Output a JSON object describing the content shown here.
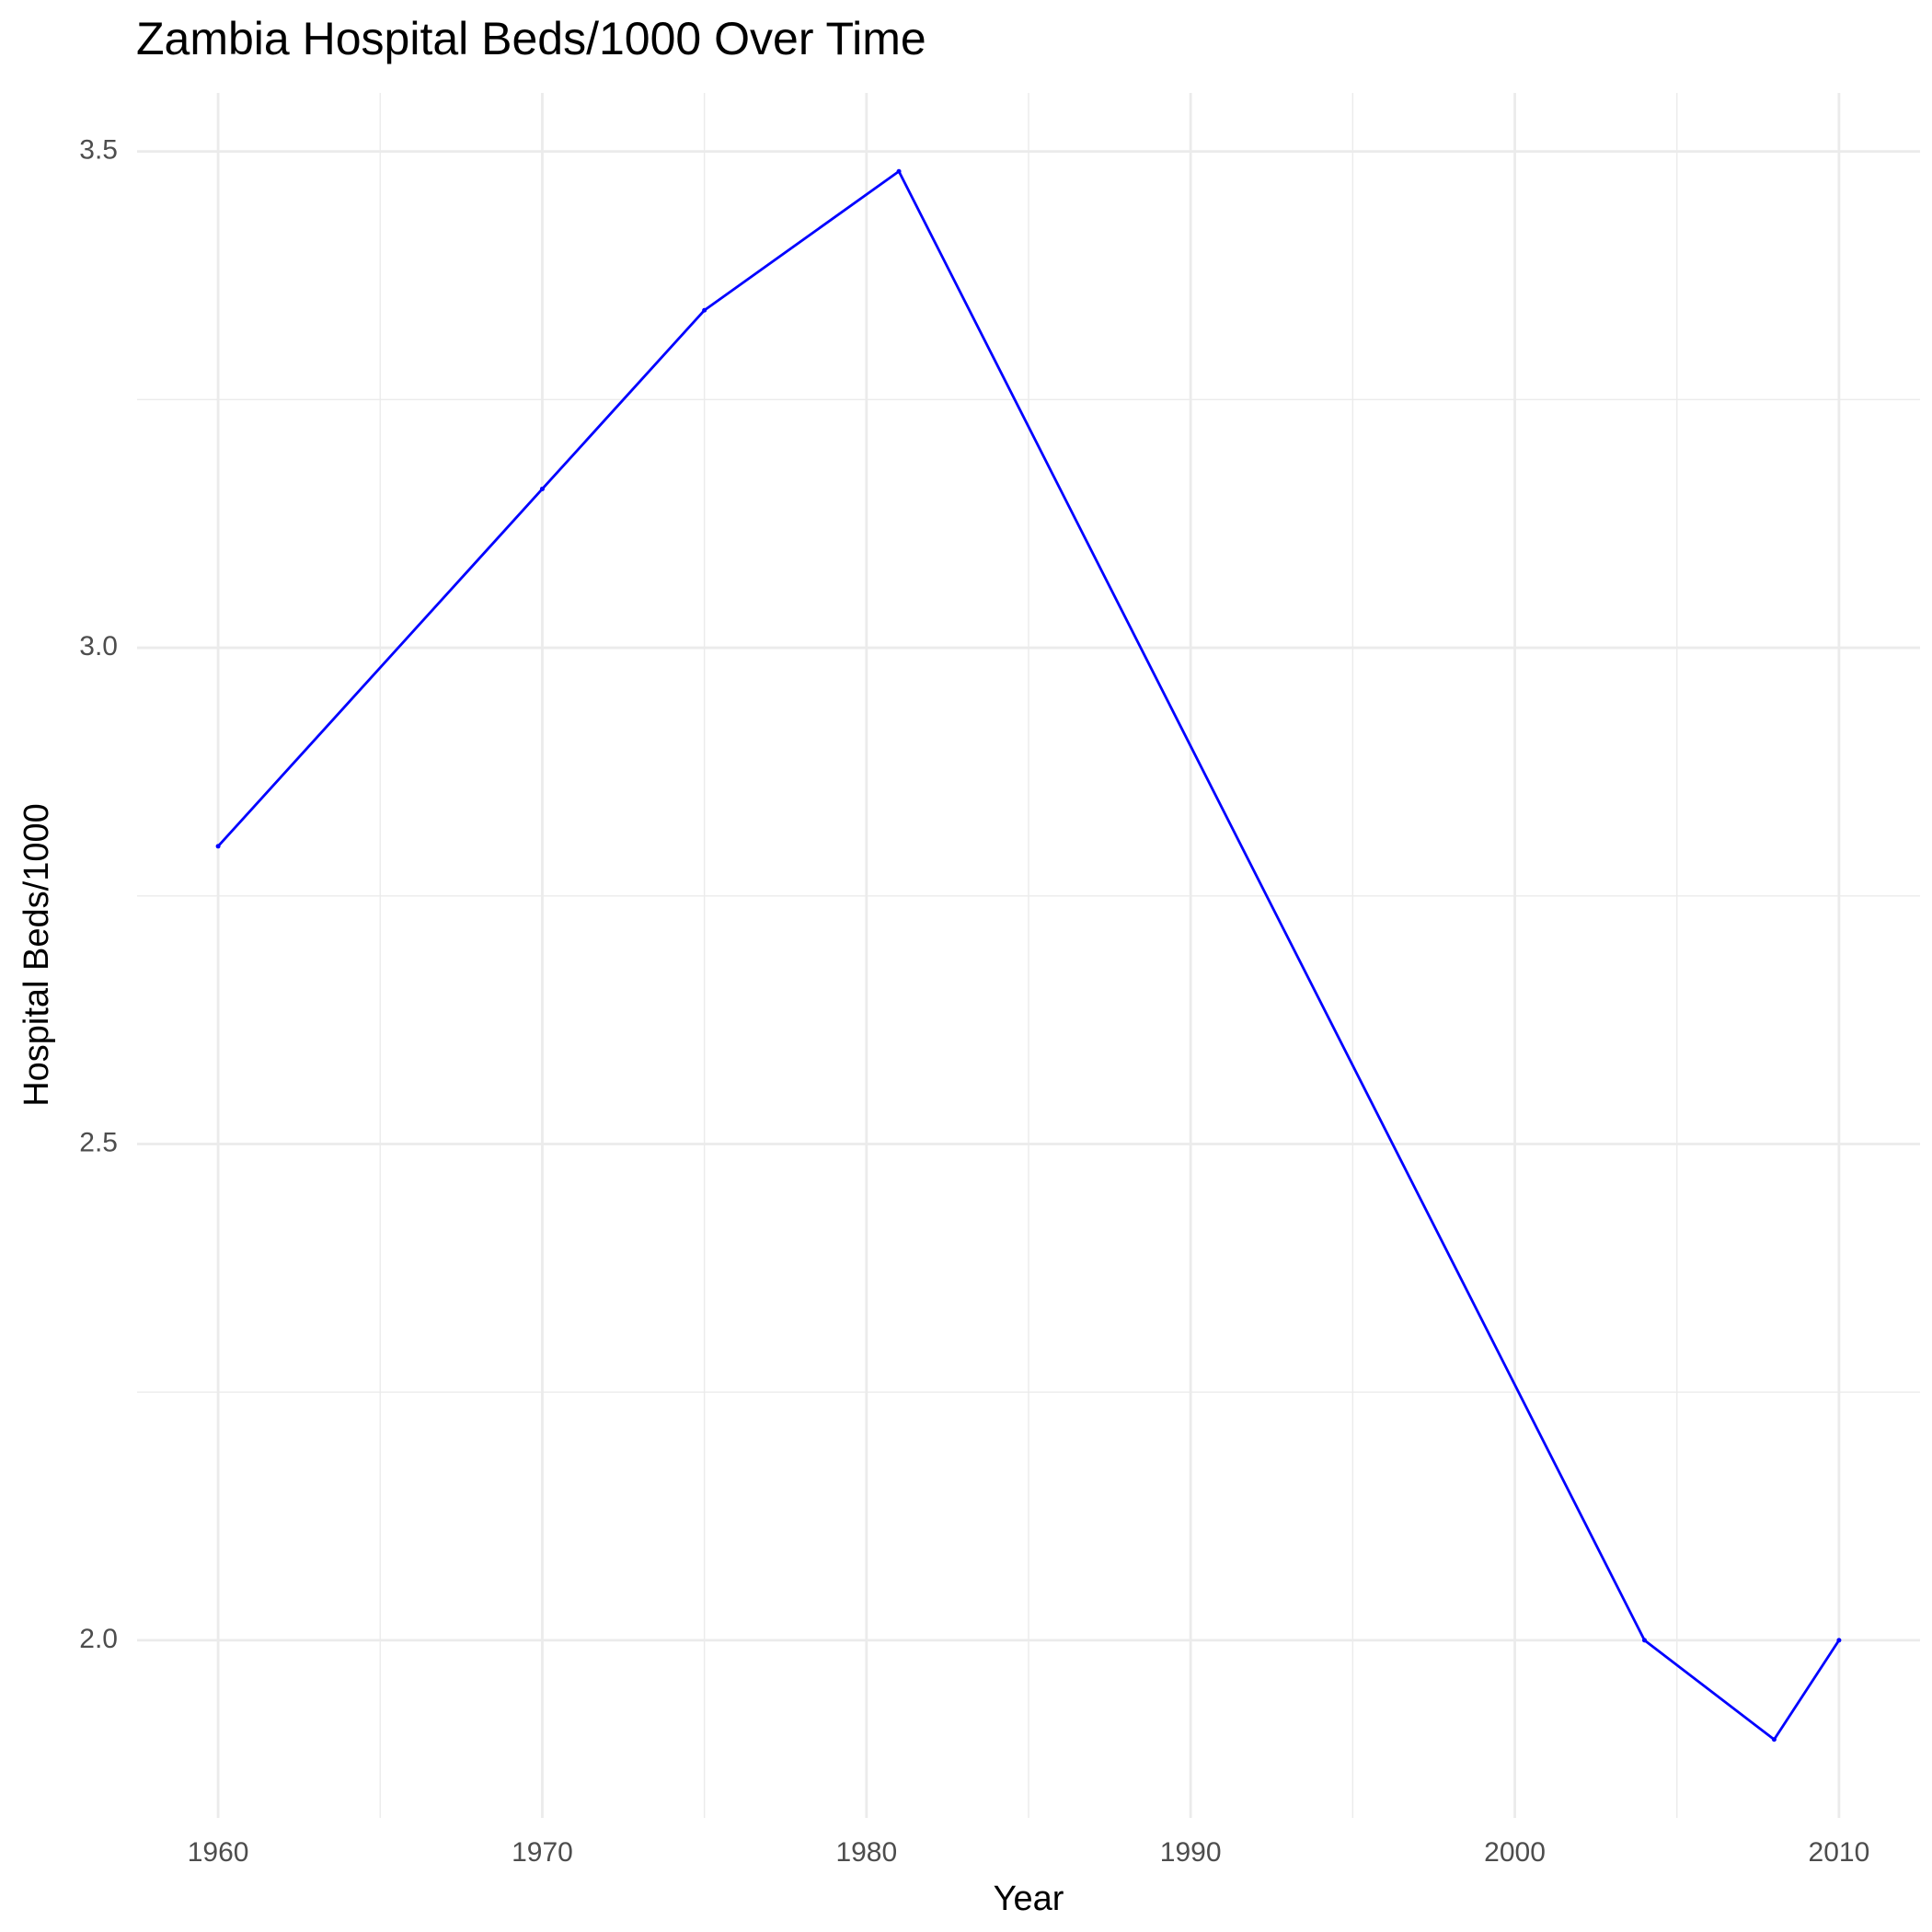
{
  "chart_data": {
    "type": "line",
    "title": "Zambia Hospital Beds/1000 Over Time",
    "x_label": "Year",
    "y_label": "Hospital Beds/1000",
    "x": [
      1960,
      1970,
      1975,
      1981,
      2004,
      2008,
      2010
    ],
    "series": [
      {
        "name": "Hospital Beds/1000",
        "color": "#0000ff",
        "values": [
          2.8,
          3.16,
          3.34,
          3.48,
          2.0,
          1.9,
          2.0
        ]
      }
    ],
    "xlim": [
      1957.5,
      2012.5
    ],
    "xticks": [
      1960,
      1970,
      1980,
      1990,
      2000,
      2010
    ],
    "x_minor_grid": [
      1965,
      1975,
      1985,
      1995,
      2005
    ],
    "ylim": [
      1.821,
      3.559
    ],
    "yticks": [
      {
        "value": 2,
        "label": "2.0"
      },
      2.5,
      {
        "value": 3,
        "label": "3.0"
      },
      3.5
    ],
    "y_minor_grid": [
      2.25,
      2.75,
      3.25
    ],
    "grid": true
  }
}
